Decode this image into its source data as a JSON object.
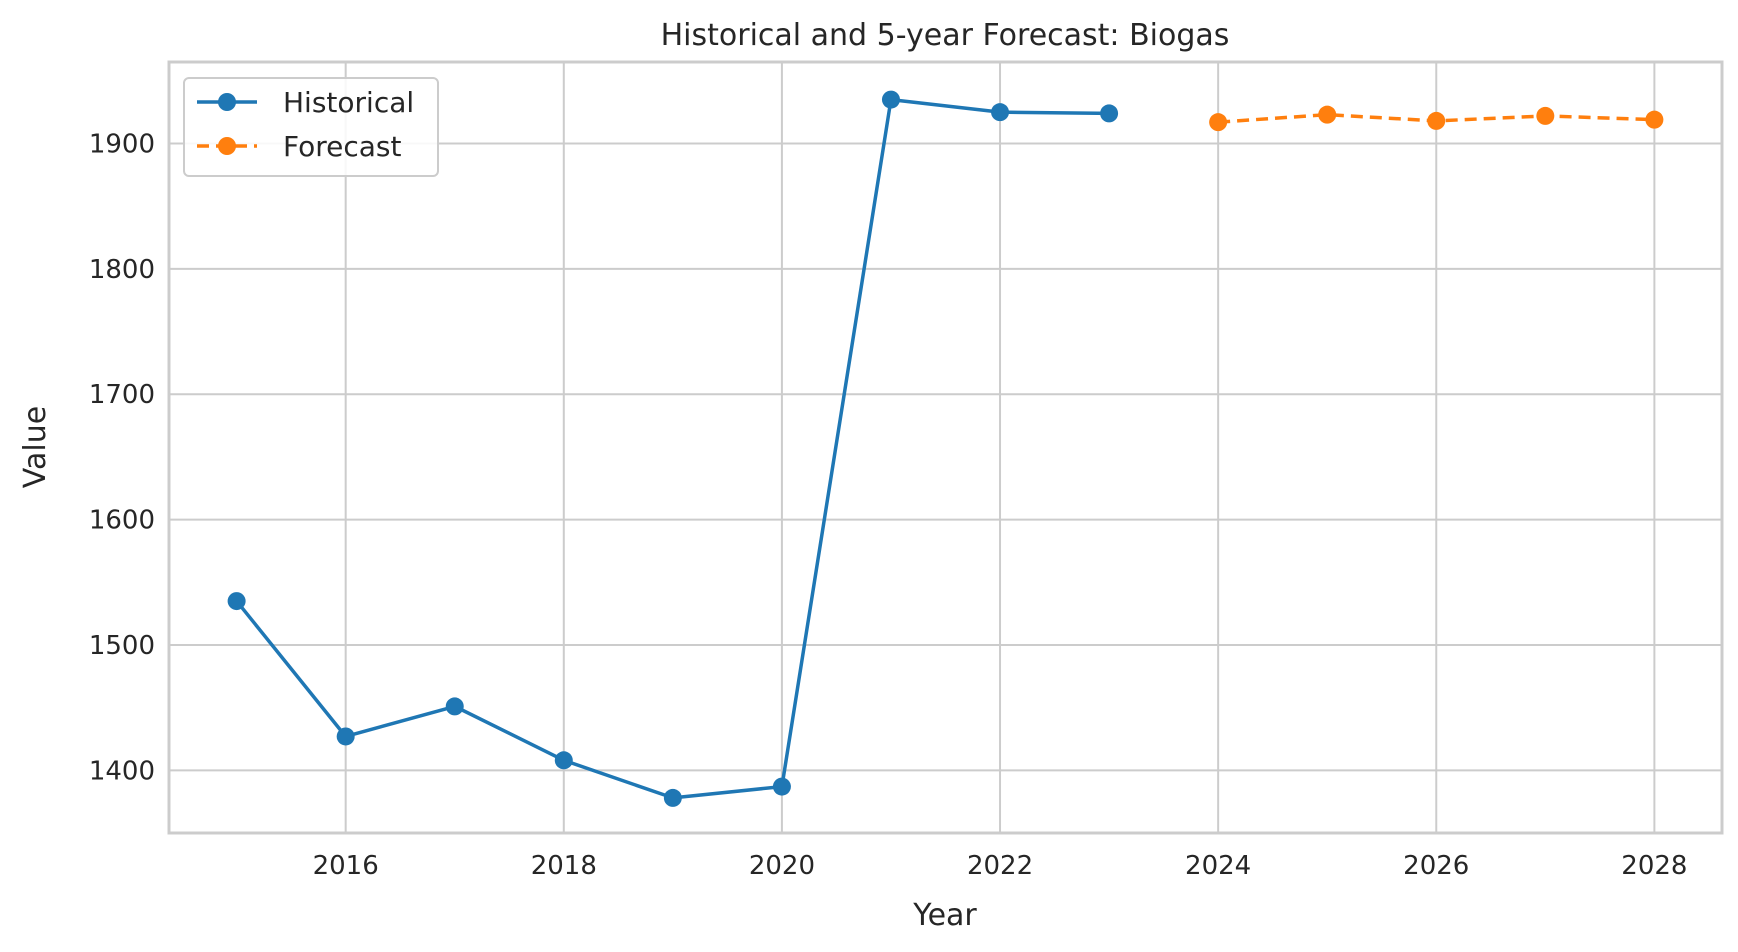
{
  "chart_data": {
    "type": "line",
    "title": "Historical and 5-year Forecast: Biogas",
    "xlabel": "Year",
    "ylabel": "Value",
    "xlim": [
      2014.38,
      2028.62
    ],
    "ylim": [
      1350,
      1965
    ],
    "x_ticks": [
      2016,
      2018,
      2020,
      2022,
      2024,
      2026,
      2028
    ],
    "y_ticks": [
      1400,
      1500,
      1600,
      1700,
      1800,
      1900
    ],
    "grid": true,
    "legend_position": "upper-left",
    "series": [
      {
        "name": "Historical",
        "color": "#1f77b4",
        "line_style": "solid",
        "marker": "circle",
        "x": [
          2015,
          2016,
          2017,
          2018,
          2019,
          2020,
          2021,
          2022,
          2023
        ],
        "y": [
          1535,
          1427,
          1451,
          1408,
          1378,
          1387,
          1935,
          1925,
          1924
        ]
      },
      {
        "name": "Forecast",
        "color": "#ff7f0e",
        "line_style": "dashed",
        "marker": "circle",
        "x": [
          2024,
          2025,
          2026,
          2027,
          2028
        ],
        "y": [
          1917,
          1923,
          1918,
          1922,
          1919
        ]
      }
    ]
  }
}
